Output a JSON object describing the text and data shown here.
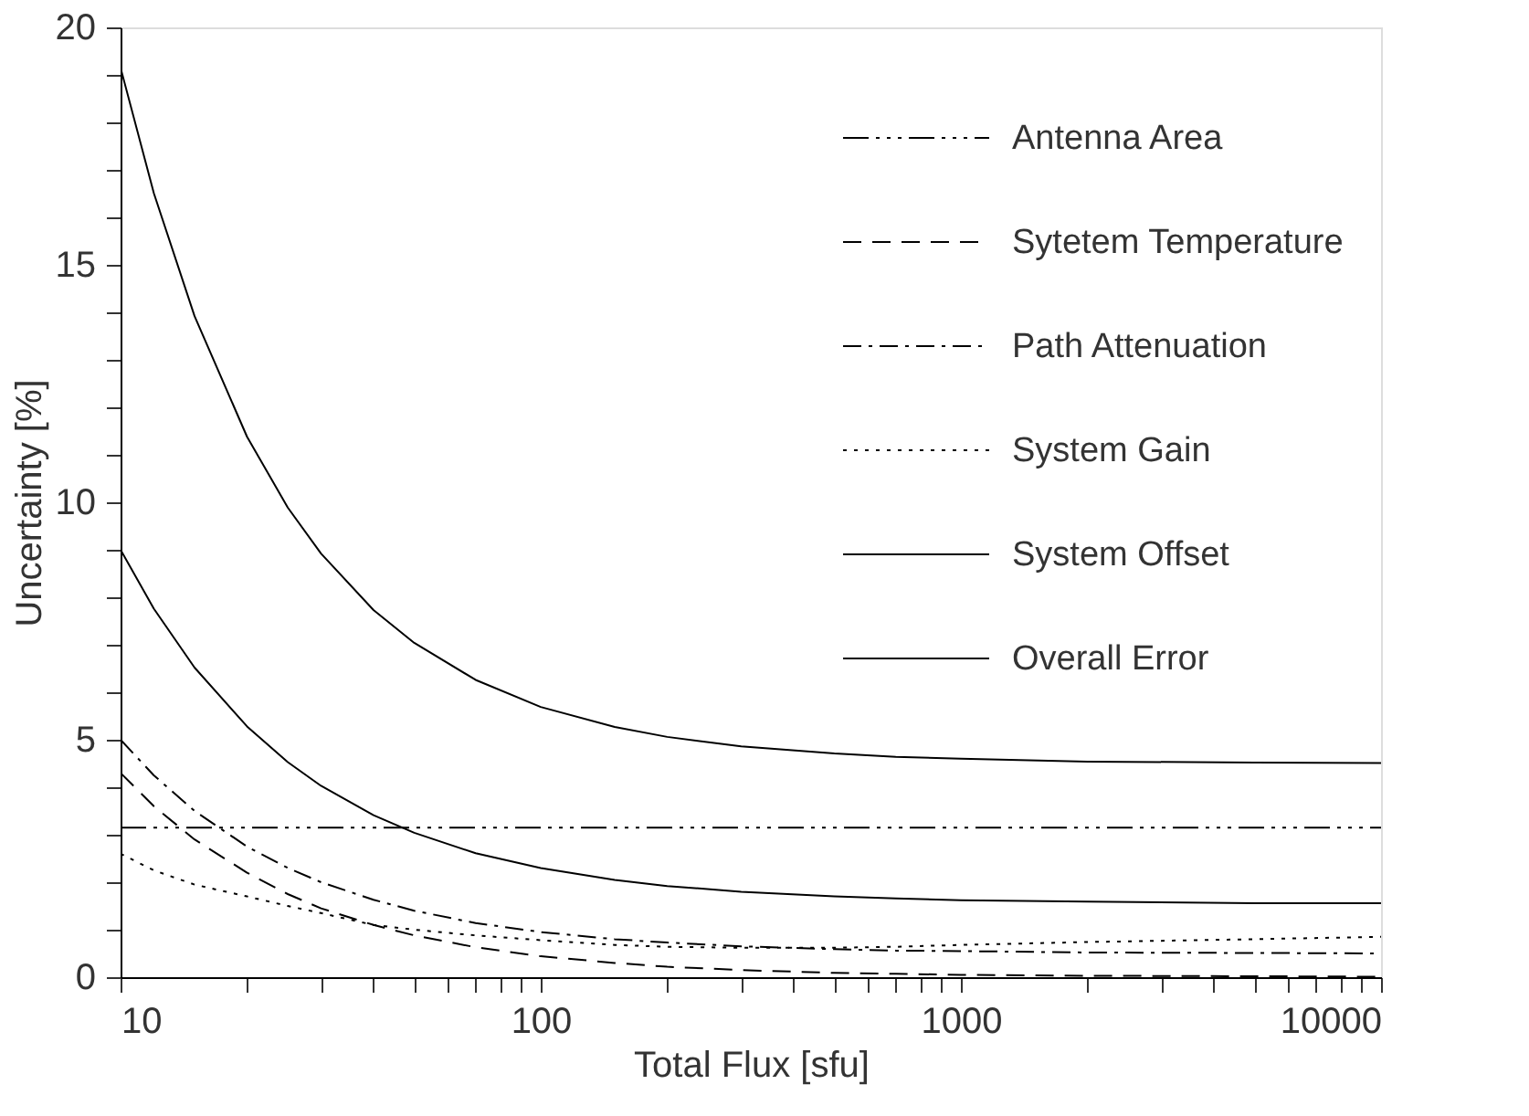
{
  "chart_data": {
    "type": "line",
    "xlabel": "Total Flux [sfu]",
    "ylabel": "Uncertainty [%]",
    "log": "x",
    "grid": false,
    "legend": "top right",
    "x": [
      10,
      12,
      15,
      20,
      25,
      30,
      40,
      50,
      70,
      100,
      150,
      200,
      300,
      500,
      700,
      1000,
      2000,
      5000,
      10000
    ],
    "series": [
      {
        "name": "Antenna Area",
        "color": "#000000",
        "line_style": "dashdotdotdot",
        "values": [
          3.15,
          3.15,
          3.15,
          3.15,
          3.15,
          3.15,
          3.15,
          3.15,
          3.15,
          3.15,
          3.15,
          3.15,
          3.15,
          3.15,
          3.15,
          3.15,
          3.15,
          3.15,
          3.15
        ]
      },
      {
        "name": "Sytetem Temperature",
        "color": "#000000",
        "line_style": "dashed",
        "values": [
          4.3,
          3.6,
          2.9,
          2.2,
          1.75,
          1.45,
          1.1,
          0.88,
          0.63,
          0.44,
          0.3,
          0.22,
          0.15,
          0.09,
          0.07,
          0.05,
          0.03,
          0.02,
          0.01
        ]
      },
      {
        "name": "Path Attenuation",
        "color": "#000000",
        "line_style": "dashdot",
        "values": [
          5.0,
          4.25,
          3.5,
          2.75,
          2.3,
          2.0,
          1.63,
          1.4,
          1.14,
          0.95,
          0.8,
          0.73,
          0.65,
          0.59,
          0.56,
          0.55,
          0.52,
          0.51,
          0.5
        ]
      },
      {
        "name": "System Gain",
        "color": "#000000",
        "line_style": "dotted",
        "values": [
          2.6,
          2.25,
          1.95,
          1.7,
          1.5,
          1.35,
          1.1,
          1.0,
          0.88,
          0.78,
          0.68,
          0.64,
          0.62,
          0.62,
          0.64,
          0.68,
          0.74,
          0.8,
          0.85
        ]
      },
      {
        "name": "System Offset",
        "color": "#000000",
        "line_style": "solid",
        "values": [
          9.0,
          7.76,
          6.52,
          5.28,
          4.53,
          4.03,
          3.41,
          3.04,
          2.61,
          2.3,
          2.05,
          1.92,
          1.8,
          1.7,
          1.66,
          1.62,
          1.59,
          1.56,
          1.56
        ]
      },
      {
        "name": "Overall Error",
        "color": "#000000",
        "line_style": "solid",
        "values": [
          19.15,
          16.51,
          13.92,
          11.38,
          9.89,
          8.92,
          7.73,
          7.04,
          6.26,
          5.69,
          5.27,
          5.06,
          4.86,
          4.71,
          4.64,
          4.6,
          4.54,
          4.52,
          4.51
        ]
      }
    ],
    "xlim": [
      10,
      10000
    ],
    "ylim": [
      0,
      20
    ],
    "xticks": [
      10,
      {
        "value": 20,
        "label": null
      },
      {
        "value": 30,
        "label": null
      },
      {
        "value": 40,
        "label": null
      },
      {
        "value": 50,
        "label": null
      },
      {
        "value": 60,
        "label": null
      },
      {
        "value": 70,
        "label": null
      },
      {
        "value": 80,
        "label": null
      },
      {
        "value": 90,
        "label": null
      },
      100,
      {
        "value": 200,
        "label": null
      },
      {
        "value": 300,
        "label": null
      },
      {
        "value": 400,
        "label": null
      },
      {
        "value": 500,
        "label": null
      },
      {
        "value": 600,
        "label": null
      },
      {
        "value": 700,
        "label": null
      },
      {
        "value": 800,
        "label": null
      },
      {
        "value": 900,
        "label": null
      },
      1000,
      {
        "value": 2000,
        "label": null
      },
      {
        "value": 3000,
        "label": null
      },
      {
        "value": 4000,
        "label": null
      },
      {
        "value": 5000,
        "label": null
      },
      {
        "value": 6000,
        "label": null
      },
      {
        "value": 7000,
        "label": null
      },
      {
        "value": 8000,
        "label": null
      },
      {
        "value": 9000,
        "label": null
      },
      10000
    ],
    "yticks": [
      0,
      {
        "value": 1,
        "label": null
      },
      {
        "value": 2,
        "label": null
      },
      {
        "value": 3,
        "label": null
      },
      {
        "value": 4,
        "label": null
      },
      5,
      {
        "value": 6,
        "label": null
      },
      {
        "value": 7,
        "label": null
      },
      {
        "value": 8,
        "label": null
      },
      {
        "value": 9,
        "label": null
      },
      10,
      {
        "value": 11,
        "label": null
      },
      {
        "value": 12,
        "label": null
      },
      {
        "value": 13,
        "label": null
      },
      {
        "value": 14,
        "label": null
      },
      15,
      {
        "value": 16,
        "label": null
      },
      {
        "value": 17,
        "label": null
      },
      {
        "value": 18,
        "label": null
      },
      {
        "value": 19,
        "label": null
      },
      20
    ]
  }
}
